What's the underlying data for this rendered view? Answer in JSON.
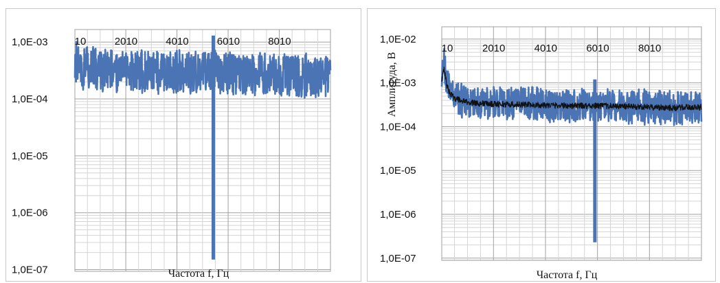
{
  "chart_data": [
    {
      "type": "line",
      "title": "",
      "xlabel": "Частота f, Гц",
      "ylabel": "",
      "yscale": "log",
      "xlim": [
        10,
        10000
      ],
      "ylim": [
        1e-07,
        0.002
      ],
      "x_ticks": [
        "10",
        "2010",
        "4010",
        "6010",
        "8010"
      ],
      "y_ticks": [
        "1,0E-03",
        "1,0E-04",
        "1,0E-05",
        "1,0E-06",
        "1,0E-07"
      ],
      "grid": true,
      "legend": "none",
      "colors": {
        "series": "#4a74b4",
        "mean": "#111111"
      },
      "series": [
        {
          "noise_band": true,
          "x": [
            10,
            250,
            500,
            1000,
            2000,
            3000,
            4000,
            5000,
            5300,
            5400,
            5500,
            6000,
            7000,
            8000,
            9000,
            10000
          ],
          "y": [
            0.00045,
            0.00038,
            0.00035,
            0.00034,
            0.00032,
            0.00031,
            0.0003,
            0.00029,
            0.00029,
            0.0003,
            0.00029,
            0.00028,
            0.00027,
            0.00026,
            0.00025,
            0.00024
          ],
          "spike": {
            "x": 5420,
            "ymin": 1.5e-07,
            "ymax": 0.0013
          }
        }
      ]
    },
    {
      "type": "line",
      "title": "",
      "xlabel": "Частота f, Гц",
      "ylabel": "Амплитуда, В",
      "yscale": "log",
      "xlim": [
        10,
        10000
      ],
      "ylim": [
        1e-07,
        0.02
      ],
      "x_ticks": [
        "10",
        "2010",
        "4010",
        "6010",
        "8010"
      ],
      "y_ticks": [
        "1,0E-02",
        "1,0E-03",
        "1,0E-04",
        "1,0E-05",
        "1,0E-06",
        "1,0E-07"
      ],
      "grid": true,
      "legend": "none",
      "colors": {
        "series": "#4a74b4",
        "mean": "#111111"
      },
      "series": [
        {
          "noise_band": true,
          "x": [
            10,
            100,
            200,
            300,
            500,
            800,
            1000,
            1500,
            2000,
            3000,
            4000,
            5000,
            6000,
            7000,
            8000,
            9000,
            10000
          ],
          "y": [
            0.0012,
            0.003,
            0.0011,
            0.0007,
            0.0005,
            0.0004,
            0.00037,
            0.00035,
            0.00034,
            0.00033,
            0.00032,
            0.00031,
            0.0003,
            0.00029,
            0.00028,
            0.00028,
            0.00029
          ],
          "spike": {
            "x": 5900,
            "ymin": 2.3e-07,
            "ymax": 0.0012
          }
        },
        {
          "x": [
            10,
            100,
            200,
            300,
            500,
            800,
            1000,
            1500,
            2000,
            3000,
            4000,
            5000,
            6000,
            7000,
            8000,
            9000,
            10000
          ],
          "y": [
            0.0011,
            0.0022,
            0.0009,
            0.0006,
            0.00045,
            0.00038,
            0.00036,
            0.00034,
            0.00033,
            0.00032,
            0.00031,
            0.0003,
            0.0003,
            0.00029,
            0.00028,
            0.00027,
            0.00028
          ]
        }
      ]
    }
  ]
}
